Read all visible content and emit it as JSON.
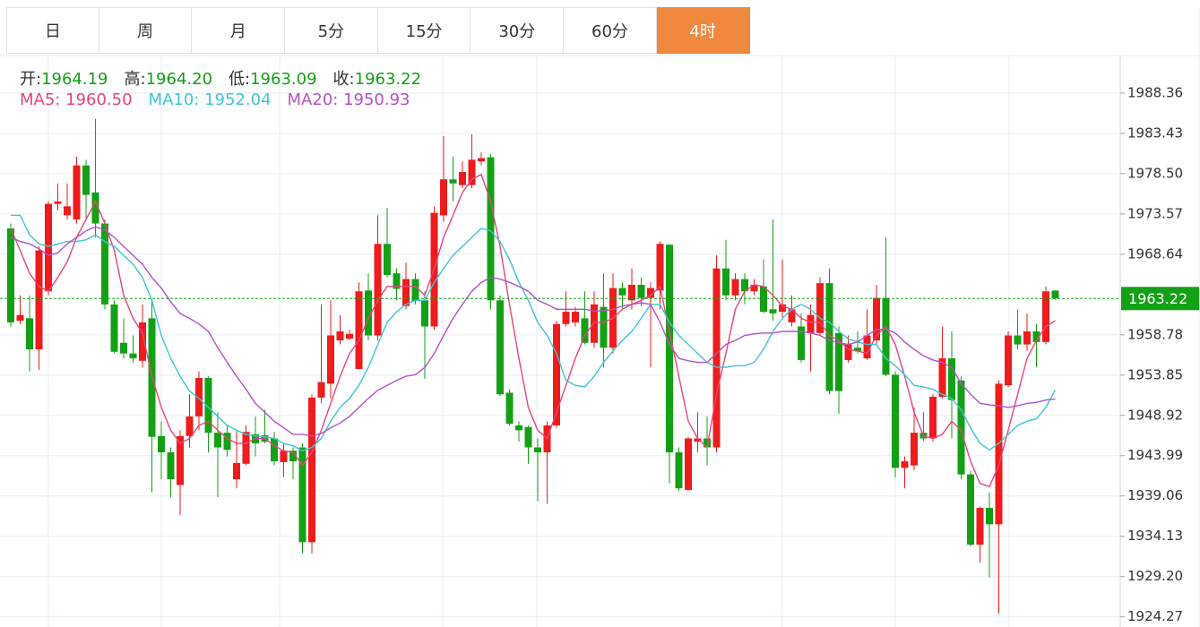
{
  "tabs": [
    {
      "label": "日",
      "active": false
    },
    {
      "label": "周",
      "active": false
    },
    {
      "label": "月",
      "active": false
    },
    {
      "label": "5分",
      "active": false
    },
    {
      "label": "15分",
      "active": false
    },
    {
      "label": "30分",
      "active": false
    },
    {
      "label": "60分",
      "active": false
    },
    {
      "label": "4时",
      "active": true
    }
  ],
  "info": {
    "ohlc": [
      {
        "label": "开:",
        "value": "1964.19"
      },
      {
        "label": "高:",
        "value": "1964.20"
      },
      {
        "label": "低:",
        "value": "1963.09"
      },
      {
        "label": "收:",
        "value": "1963.22"
      }
    ]
  },
  "chart_data": {
    "type": "candlestick",
    "up_color": "#ee1c1c",
    "down_color": "#14a014",
    "open": [
      1971.8,
      1960.5,
      1960.8,
      1957.0,
      1964.1,
      1974.8,
      1973.4,
      1972.9,
      1979.5,
      1976.2,
      1972.4,
      1962.5,
      1957.8,
      1956.5,
      1955.6,
      1960.8,
      1946.4,
      1944.4,
      1940.4,
      1946.4,
      1948.8,
      1953.5,
      1946.8,
      1946.8,
      1941.1,
      1943.0,
      1946.6,
      1946.5,
      1946.1,
      1943.2,
      1944.6,
      1945.0,
      1933.4,
      1951.1,
      1952.8,
      1958.1,
      1958.3,
      1954.6,
      1964.2,
      1958.7,
      1969.9,
      1966.3,
      1962.3,
      1965.6,
      1963.0,
      1959.8,
      1973.4,
      1977.8,
      1977.1,
      1977.1,
      1980.0,
      1980.5,
      1963.0,
      1951.7,
      1947.7,
      1947.5,
      1945.0,
      1944.4,
      1947.7,
      1960.1,
      1960.3,
      1960.8,
      1957.8,
      1962.2,
      1957.2,
      1964.5,
      1963.0,
      1964.9,
      1963.3,
      1964.2,
      1969.8,
      1944.4,
      1939.8,
      1945.7,
      1946.1,
      1945.0,
      1966.9,
      1963.6,
      1965.6,
      1964.1,
      1964.7,
      1961.9,
      1961.6,
      1960.3,
      1959.8,
      1959.0,
      1959.0,
      1965.1,
      1959.0,
      1955.7,
      1957.2,
      1955.9,
      1958.1,
      1963.3,
      1953.9,
      1942.5,
      1942.8,
      1946.8,
      1946.1,
      1951.2,
      1955.9,
      1953.2,
      1941.7,
      1933.1,
      1937.6,
      1935.6,
      1952.6,
      1958.7,
      1957.6,
      1959.2,
      1957.9,
      1964.19
    ],
    "high": [
      1972.4,
      1963.6,
      1963.6,
      1969.6,
      1975.1,
      1977.3,
      1977.3,
      1980.6,
      1980.2,
      1985.2,
      1972.9,
      1963.0,
      1960.8,
      1958.7,
      1962.5,
      1963.0,
      1948.2,
      1945.0,
      1947.1,
      1951.5,
      1954.3,
      1953.7,
      1949.3,
      1947.7,
      1947.1,
      1947.7,
      1948.8,
      1949.6,
      1946.9,
      1945.5,
      1945.0,
      1945.5,
      1951.5,
      1962.5,
      1963.0,
      1961.2,
      1959.4,
      1965.2,
      1966.3,
      1973.4,
      1974.3,
      1966.9,
      1967.6,
      1966.3,
      1964.1,
      1974.5,
      1983.1,
      1980.6,
      1980.0,
      1983.3,
      1981.1,
      1980.9,
      1963.6,
      1952.1,
      1948.2,
      1947.7,
      1946.1,
      1948.2,
      1960.5,
      1964.1,
      1962.2,
      1964.1,
      1964.1,
      1966.3,
      1966.3,
      1965.2,
      1966.9,
      1965.8,
      1965.2,
      1970.2,
      1969.9,
      1945.0,
      1946.3,
      1949.3,
      1948.8,
      1968.5,
      1970.4,
      1966.3,
      1966.3,
      1965.6,
      1968.0,
      1972.9,
      1968.0,
      1963.6,
      1961.4,
      1962.5,
      1965.8,
      1966.9,
      1959.8,
      1958.7,
      1959.2,
      1961.9,
      1964.9,
      1970.7,
      1954.3,
      1943.9,
      1949.9,
      1949.3,
      1951.5,
      1959.8,
      1959.2,
      1953.7,
      1942.2,
      1937.8,
      1939.5,
      1953.2,
      1959.2,
      1961.9,
      1961.4,
      1960.1,
      1964.7,
      1964.2
    ],
    "low": [
      1959.8,
      1960.1,
      1954.3,
      1954.5,
      1963.6,
      1974.0,
      1972.9,
      1972.4,
      1972.9,
      1970.7,
      1961.9,
      1956.5,
      1955.9,
      1955.4,
      1954.8,
      1939.5,
      1941.1,
      1938.9,
      1936.7,
      1945.0,
      1947.1,
      1944.4,
      1938.9,
      1943.9,
      1940.0,
      1942.8,
      1943.9,
      1945.5,
      1942.8,
      1941.4,
      1941.1,
      1932.0,
      1932.0,
      1950.4,
      1951.0,
      1957.6,
      1958.1,
      1954.6,
      1958.1,
      1958.1,
      1965.8,
      1963.0,
      1961.9,
      1962.5,
      1953.4,
      1959.4,
      1972.6,
      1975.1,
      1976.7,
      1976.7,
      1979.5,
      1961.9,
      1951.3,
      1947.7,
      1945.7,
      1943.0,
      1938.4,
      1938.1,
      1947.4,
      1959.8,
      1959.8,
      1957.6,
      1957.2,
      1954.8,
      1956.5,
      1961.9,
      1961.9,
      1962.3,
      1954.8,
      1961.9,
      1940.6,
      1939.7,
      1939.7,
      1944.4,
      1942.8,
      1944.4,
      1963.0,
      1963.0,
      1962.5,
      1963.6,
      1961.4,
      1960.5,
      1960.8,
      1959.8,
      1955.4,
      1954.3,
      1958.7,
      1951.5,
      1949.1,
      1955.4,
      1956.5,
      1955.7,
      1957.6,
      1953.7,
      1941.3,
      1940.0,
      1942.2,
      1945.8,
      1945.7,
      1951.0,
      1946.1,
      1941.1,
      1932.9,
      1930.9,
      1929.1,
      1924.7,
      1952.4,
      1957.0,
      1956.8,
      1954.8,
      1957.6,
      1963.09
    ],
    "close": [
      1960.3,
      1961.2,
      1957.0,
      1969.1,
      1974.8,
      1975.1,
      1974.5,
      1979.5,
      1975.9,
      1972.4,
      1962.5,
      1956.7,
      1956.5,
      1955.9,
      1960.3,
      1946.3,
      1944.4,
      1941.1,
      1946.4,
      1948.8,
      1953.5,
      1946.8,
      1945.0,
      1944.7,
      1943.1,
      1946.9,
      1945.5,
      1945.7,
      1943.3,
      1944.6,
      1943.3,
      1933.4,
      1951.1,
      1953.0,
      1958.7,
      1959.2,
      1958.9,
      1964.1,
      1958.7,
      1969.9,
      1966.1,
      1964.4,
      1965.6,
      1962.9,
      1959.8,
      1973.7,
      1977.8,
      1977.3,
      1978.7,
      1980.2,
      1980.4,
      1963.0,
      1951.5,
      1947.9,
      1947.1,
      1945.0,
      1944.4,
      1947.7,
      1960.1,
      1961.6,
      1961.6,
      1957.8,
      1962.5,
      1957.2,
      1964.5,
      1963.6,
      1964.9,
      1963.3,
      1964.5,
      1969.9,
      1944.4,
      1940.0,
      1946.1,
      1946.1,
      1945.0,
      1966.9,
      1963.6,
      1965.6,
      1964.1,
      1964.9,
      1961.6,
      1961.4,
      1962.5,
      1961.9,
      1955.7,
      1961.2,
      1965.1,
      1951.9,
      1951.9,
      1957.6,
      1956.8,
      1958.7,
      1963.3,
      1953.9,
      1942.5,
      1943.3,
      1946.8,
      1946.1,
      1951.2,
      1955.9,
      1950.8,
      1941.7,
      1933.1,
      1937.6,
      1935.6,
      1952.8,
      1958.7,
      1957.6,
      1959.2,
      1957.9,
      1964.1,
      1963.22
    ],
    "series": [
      {
        "name": "MA5:",
        "legend_value": "1960.50",
        "color": "#e8457c",
        "values": [
          1971.8,
          1969.1,
          1966.3,
          1964.7,
          1964.1,
          1965.8,
          1967.7,
          1970.7,
          1972.9,
          1975.1,
          1972.4,
          1969.1,
          1963.6,
          1960.8,
          1959.0,
          1953.7,
          1949.9,
          1947.1,
          1945.5,
          1946.1,
          1947.7,
          1948.2,
          1947.1,
          1946.1,
          1945.5,
          1945.5,
          1946.1,
          1946.1,
          1945.2,
          1944.6,
          1944.4,
          1942.8,
          1944.4,
          1947.1,
          1950.4,
          1953.7,
          1956.5,
          1958.1,
          1960.8,
          1963.0,
          1964.7,
          1964.7,
          1964.7,
          1964.7,
          1963.6,
          1966.9,
          1970.7,
          1973.4,
          1976.2,
          1977.8,
          1978.4,
          1975.1,
          1969.6,
          1962.5,
          1955.9,
          1949.9,
          1947.1,
          1946.1,
          1949.3,
          1952.6,
          1955.9,
          1958.7,
          1960.3,
          1960.3,
          1960.8,
          1961.9,
          1962.5,
          1963.0,
          1963.6,
          1964.7,
          1959.2,
          1953.7,
          1948.2,
          1946.1,
          1945.0,
          1951.5,
          1956.5,
          1961.9,
          1964.1,
          1964.9,
          1964.7,
          1963.6,
          1962.3,
          1961.9,
          1960.8,
          1960.3,
          1960.3,
          1958.7,
          1958.1,
          1957.0,
          1956.8,
          1956.5,
          1958.7,
          1959.8,
          1957.6,
          1953.7,
          1949.3,
          1946.4,
          1946.1,
          1946.6,
          1948.2,
          1947.1,
          1943.3,
          1940.6,
          1940.2,
          1942.8,
          1947.1,
          1951.5,
          1955.9,
          1958.1,
          1959.8,
          1960.5
        ]
      },
      {
        "name": "MA10:",
        "legend_value": "1952.04",
        "color": "#3ec6d6",
        "values": [
          1973.4,
          1973.4,
          1971.0,
          1969.9,
          1969.6,
          1969.9,
          1970.2,
          1970.2,
          1970.4,
          1971.0,
          1970.2,
          1969.6,
          1968.5,
          1967.4,
          1965.8,
          1963.0,
          1958.7,
          1955.9,
          1953.7,
          1951.9,
          1951.0,
          1949.9,
          1948.8,
          1947.7,
          1947.1,
          1946.6,
          1946.4,
          1946.3,
          1946.1,
          1945.5,
          1945.2,
          1944.6,
          1945.0,
          1946.1,
          1948.2,
          1949.9,
          1951.0,
          1952.6,
          1954.8,
          1957.6,
          1960.3,
          1961.6,
          1962.5,
          1963.0,
          1963.0,
          1965.2,
          1966.9,
          1968.5,
          1969.6,
          1970.7,
          1971.8,
          1971.5,
          1970.2,
          1968.0,
          1965.2,
          1963.0,
          1960.3,
          1958.7,
          1956.5,
          1953.2,
          1952.6,
          1952.4,
          1953.7,
          1955.4,
          1956.8,
          1958.1,
          1959.2,
          1960.8,
          1962.5,
          1962.5,
          1960.3,
          1958.7,
          1957.6,
          1956.5,
          1955.4,
          1954.8,
          1954.8,
          1955.0,
          1955.0,
          1955.4,
          1957.0,
          1959.2,
          1960.8,
          1961.9,
          1962.5,
          1961.9,
          1960.8,
          1960.3,
          1959.2,
          1958.3,
          1957.9,
          1957.6,
          1957.6,
          1955.9,
          1955.0,
          1953.9,
          1952.6,
          1952.4,
          1952.1,
          1951.5,
          1951.0,
          1949.6,
          1947.4,
          1945.5,
          1944.7,
          1945.5,
          1946.6,
          1947.7,
          1948.2,
          1948.5,
          1949.9,
          1952.04
        ]
      },
      {
        "name": "MA20:",
        "legend_value": "1950.93",
        "color": "#b452c8",
        "values": [
          1970.7,
          1970.2,
          1969.9,
          1969.3,
          1968.5,
          1968.8,
          1969.9,
          1970.7,
          1971.5,
          1972.0,
          1971.6,
          1970.7,
          1969.6,
          1968.5,
          1967.4,
          1965.8,
          1964.5,
          1962.8,
          1961.4,
          1960.8,
          1960.1,
          1959.2,
          1957.2,
          1955.4,
          1953.7,
          1952.1,
          1950.4,
          1949.3,
          1948.2,
          1947.4,
          1946.6,
          1946.6,
          1946.4,
          1946.7,
          1947.4,
          1948.0,
          1948.8,
          1949.9,
          1951.0,
          1952.0,
          1952.6,
          1953.2,
          1953.7,
          1953.9,
          1954.8,
          1956.5,
          1958.7,
          1960.8,
          1962.5,
          1964.1,
          1965.2,
          1965.8,
          1965.6,
          1965.2,
          1964.7,
          1964.1,
          1963.0,
          1962.5,
          1961.9,
          1961.9,
          1961.9,
          1961.9,
          1961.7,
          1961.7,
          1961.9,
          1962.3,
          1962.5,
          1962.7,
          1962.5,
          1960.3,
          1957.6,
          1955.9,
          1955.6,
          1955.4,
          1955.4,
          1956.5,
          1957.6,
          1958.1,
          1958.7,
          1958.9,
          1959.0,
          1959.0,
          1959.2,
          1959.2,
          1959.2,
          1959.0,
          1958.7,
          1958.1,
          1957.8,
          1957.6,
          1957.9,
          1958.7,
          1959.4,
          1959.5,
          1959.0,
          1957.9,
          1957.0,
          1956.2,
          1955.7,
          1955.4,
          1954.8,
          1952.8,
          1951.5,
          1950.4,
          1950.2,
          1950.1,
          1949.9,
          1950.1,
          1950.4,
          1950.5,
          1950.8,
          1950.93
        ]
      }
    ],
    "ylim": [
      1923.03,
      1992.95
    ],
    "yticks": [
      1988.36,
      1983.43,
      {
        "value": 1978.5,
        "label": "1978.50"
      },
      1973.57,
      1968.64,
      1958.78,
      1953.85,
      1948.92,
      1943.99,
      1939.06,
      1934.13,
      {
        "value": 1929.2,
        "label": "1929.20"
      },
      1924.27
    ],
    "grid": true,
    "last_price": 1963.22,
    "last_price_color": "#14a014"
  }
}
